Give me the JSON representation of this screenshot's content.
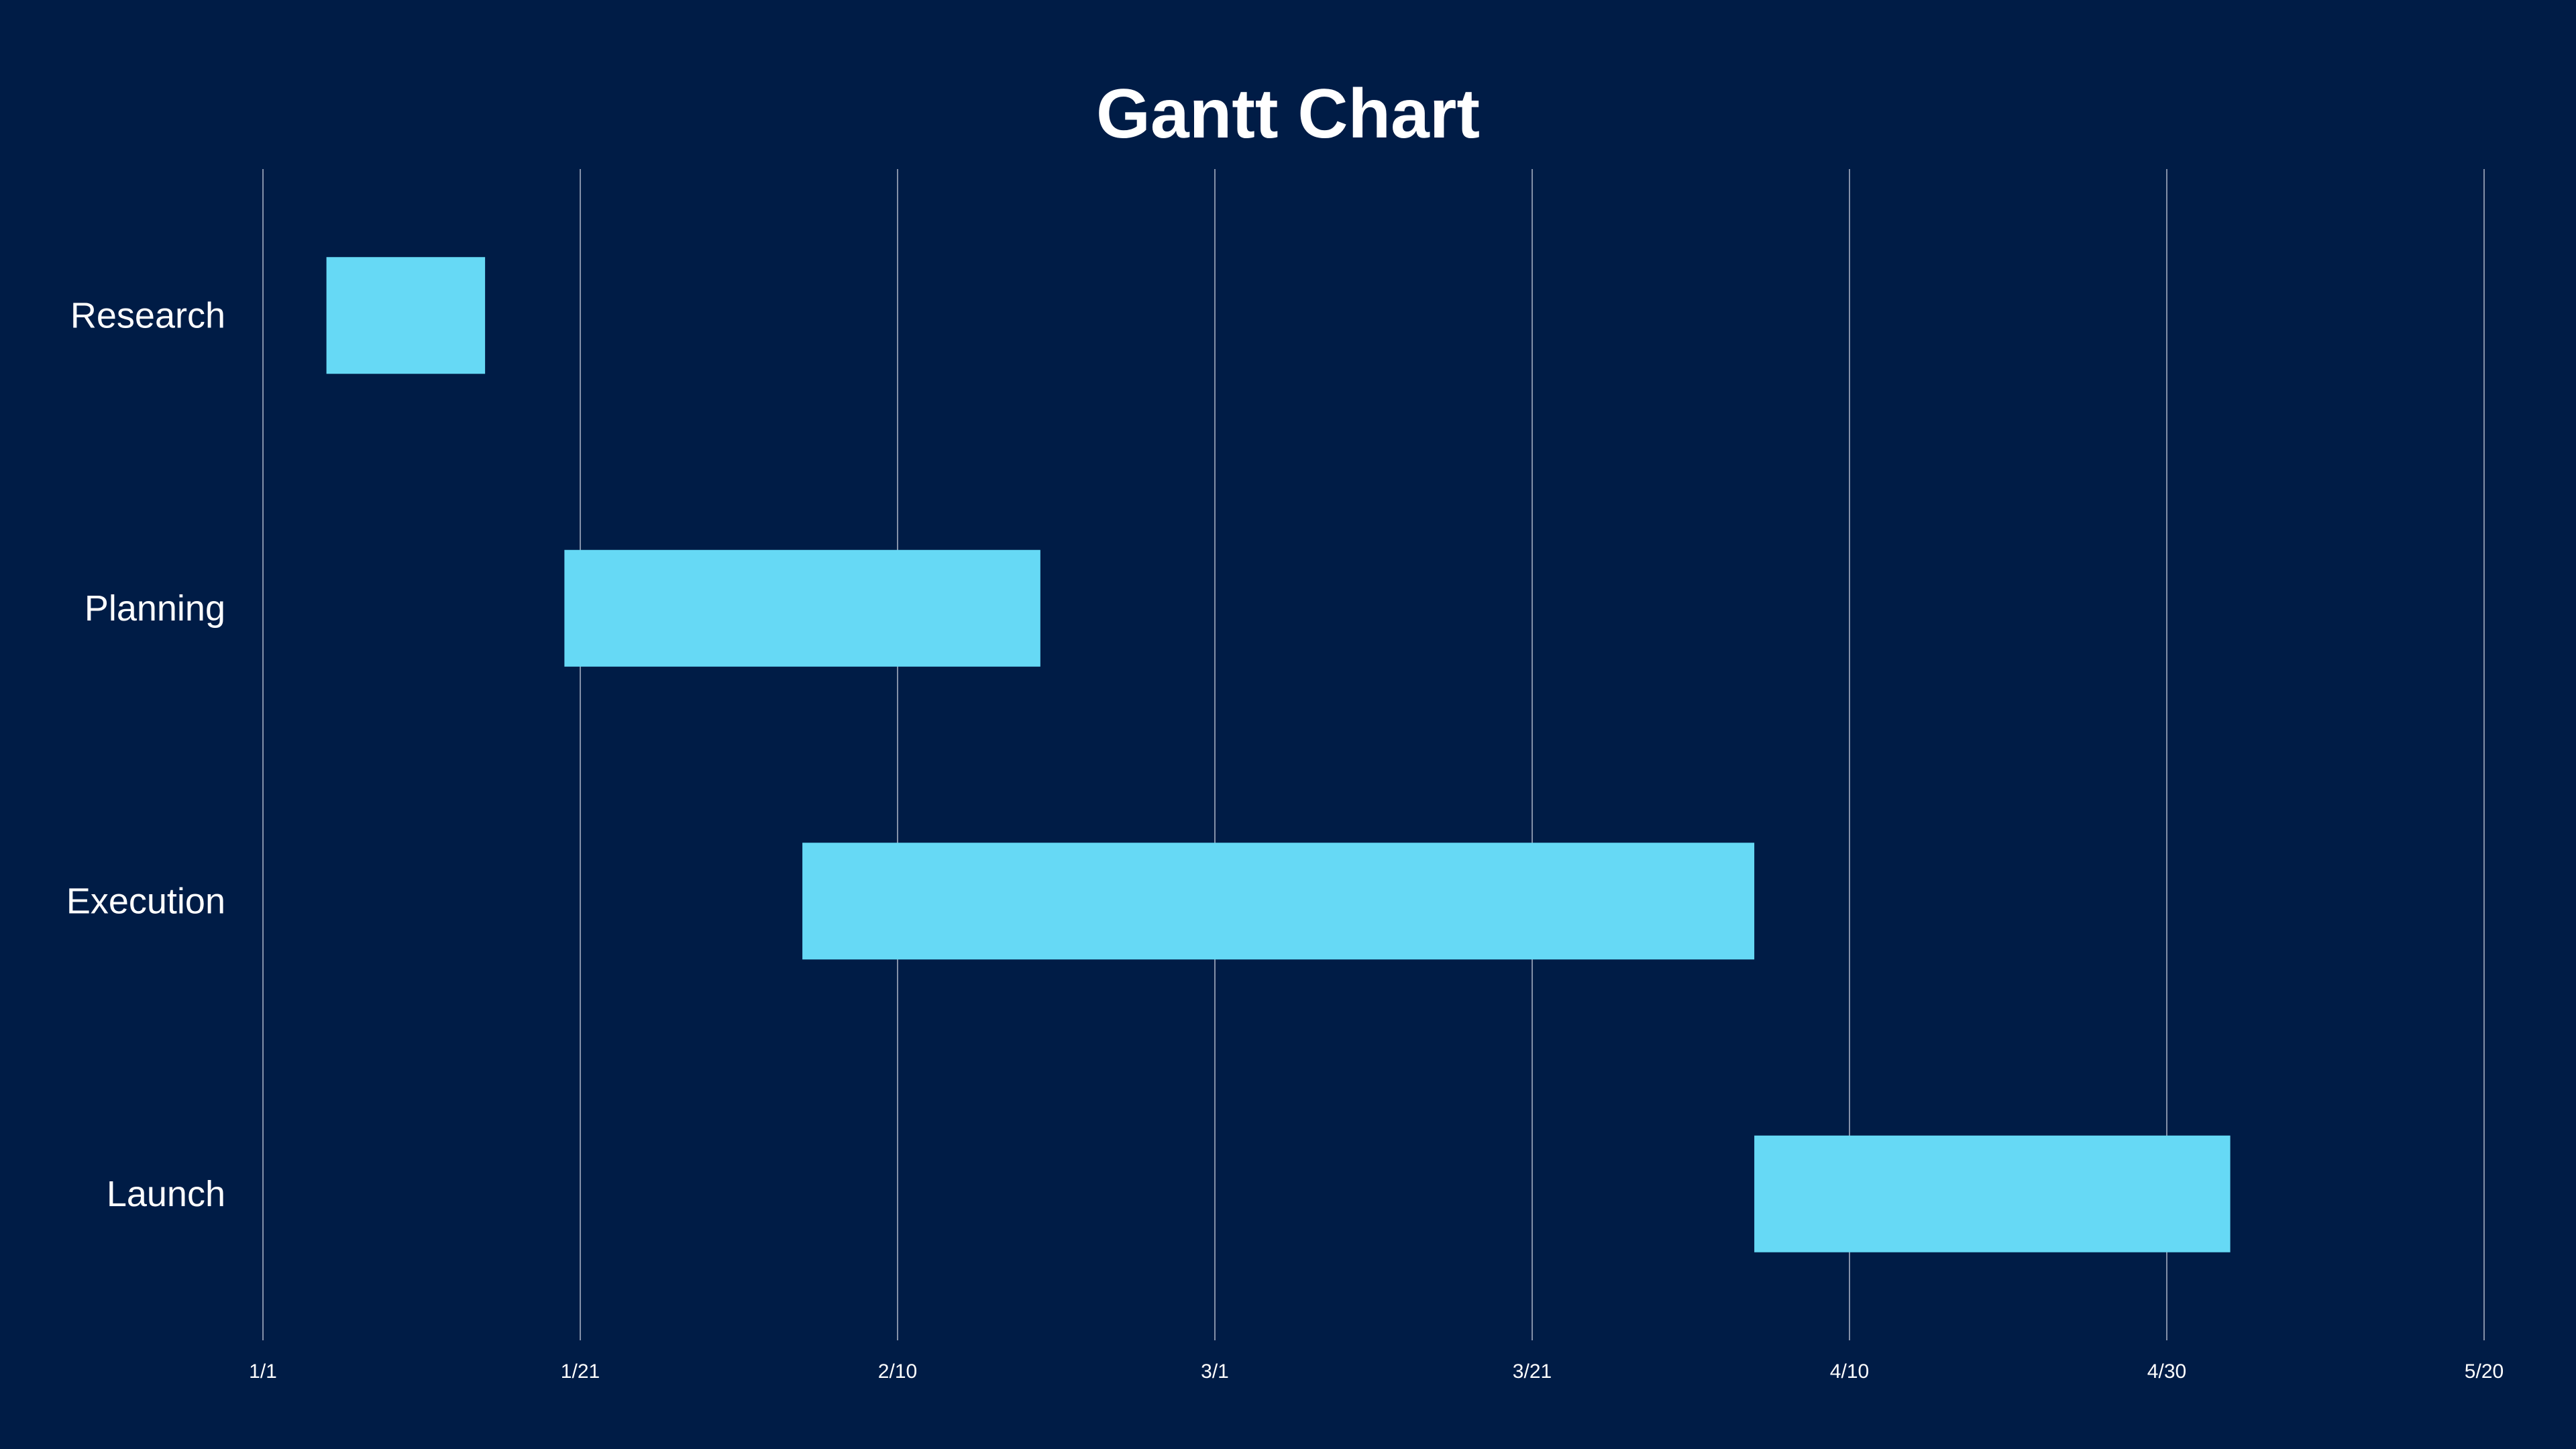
{
  "chart_data": {
    "type": "bar",
    "subtype": "gantt",
    "title": "Gantt Chart",
    "xlabel": "",
    "ylabel": "",
    "x_ticks": [
      "1/1",
      "1/21",
      "2/10",
      "3/1",
      "3/21",
      "4/10",
      "4/30",
      "5/20"
    ],
    "x_range": [
      "1/1",
      "5/20"
    ],
    "grid": "vertical",
    "legend": "none",
    "tasks": [
      {
        "name": "Research",
        "start": "1/5",
        "end": "1/15"
      },
      {
        "name": "Planning",
        "start": "1/20",
        "end": "2/19"
      },
      {
        "name": "Execution",
        "start": "2/4",
        "end": "4/4"
      },
      {
        "name": "Launch",
        "start": "4/4",
        "end": "5/4"
      }
    ],
    "colors": {
      "background": "#001c46",
      "bar": "#66d9f5",
      "grid": "#8490a8",
      "text": "#ffffff"
    }
  }
}
